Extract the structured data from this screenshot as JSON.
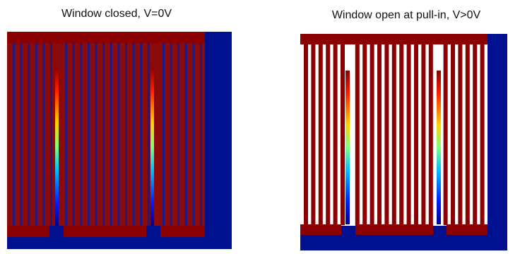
{
  "panels": [
    {
      "title": "Window closed, V=0V"
    },
    {
      "title": "Window open at pull-in, V>0V"
    }
  ]
}
